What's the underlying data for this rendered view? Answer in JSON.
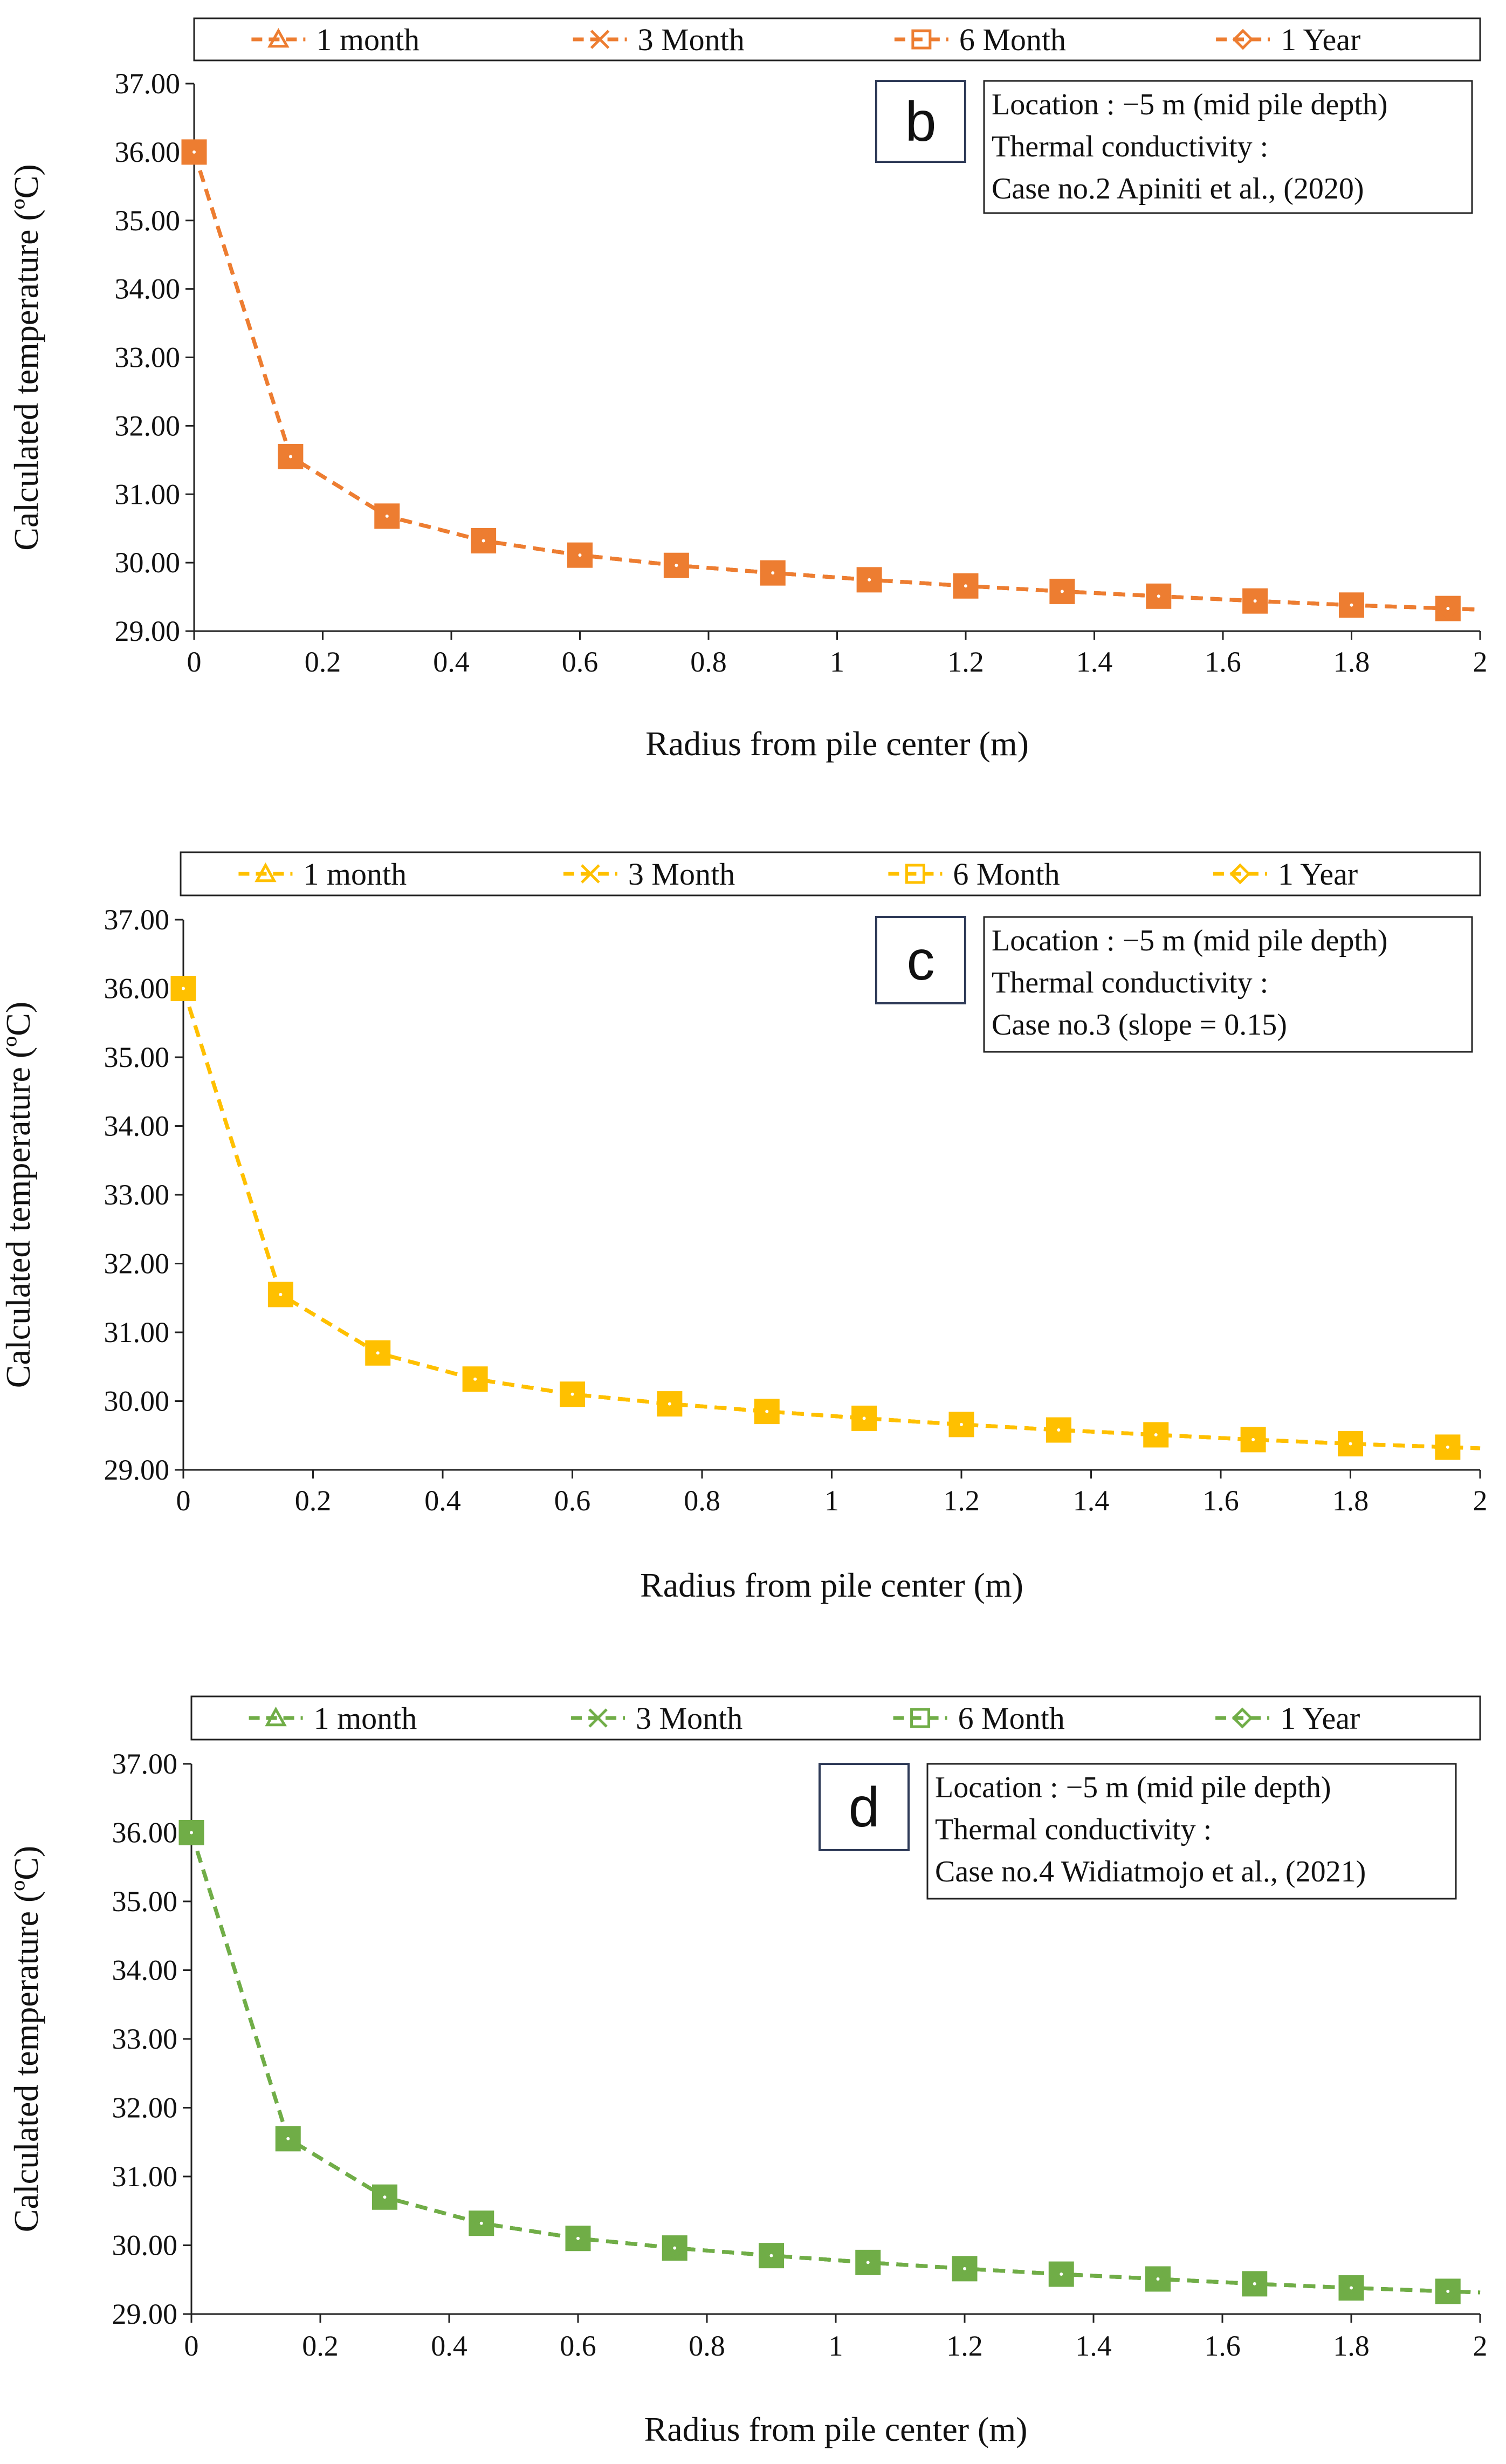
{
  "chart_data": [
    {
      "type": "line",
      "panel_label": "b",
      "color": "#ED7D31",
      "xlabel": "Radius from pile center (m)",
      "ylabel": "Calculated temperature (ºC)",
      "xlim": [
        0,
        2
      ],
      "ylim": [
        29,
        37
      ],
      "x_ticks": [
        "0",
        "0.2",
        "0.4",
        "0.6",
        "0.8",
        "1",
        "1.2",
        "1.4",
        "1.6",
        "1.8",
        "2"
      ],
      "y_ticks": [
        "29.00",
        "30.00",
        "31.00",
        "32.00",
        "33.00",
        "34.00",
        "35.00",
        "36.00",
        "37.00"
      ],
      "legend": [
        "1 month",
        "3 Month",
        "6 Month",
        "1 Year"
      ],
      "annotation": [
        "Location : −5 m (mid pile depth)",
        "Thermal conductivity :",
        "Case no.2 Apiniti et al., (2020)"
      ],
      "x": [
        0,
        0.15,
        0.3,
        0.45,
        0.6,
        0.75,
        0.9,
        1.05,
        1.2,
        1.35,
        1.5,
        1.65,
        1.8,
        1.95
      ],
      "series": [
        {
          "name": "1 month",
          "marker": "triangle",
          "values": [
            36.0,
            31.55,
            30.68,
            30.32,
            30.11,
            29.96,
            29.85,
            29.75,
            29.66,
            29.58,
            29.51,
            29.44,
            29.38,
            29.33
          ]
        },
        {
          "name": "3 Month",
          "marker": "x",
          "values": [
            36.0,
            31.55,
            30.68,
            30.32,
            30.11,
            29.96,
            29.85,
            29.75,
            29.66,
            29.58,
            29.51,
            29.44,
            29.38,
            29.33
          ]
        },
        {
          "name": "6 Month",
          "marker": "square",
          "values": [
            36.0,
            31.55,
            30.68,
            30.32,
            30.11,
            29.96,
            29.85,
            29.75,
            29.66,
            29.58,
            29.51,
            29.44,
            29.38,
            29.33
          ]
        },
        {
          "name": "1 Year",
          "marker": "diamond",
          "values": [
            36.0,
            31.55,
            30.68,
            30.32,
            30.11,
            29.96,
            29.85,
            29.75,
            29.66,
            29.58,
            29.51,
            29.44,
            29.38,
            29.33
          ]
        }
      ]
    },
    {
      "type": "line",
      "panel_label": "c",
      "color": "#FFC000",
      "xlabel": "Radius from pile center (m)",
      "ylabel": "Calculated temperature (ºC)",
      "xlim": [
        0,
        2
      ],
      "ylim": [
        29,
        37
      ],
      "x_ticks": [
        "0",
        "0.2",
        "0.4",
        "0.6",
        "0.8",
        "1",
        "1.2",
        "1.4",
        "1.6",
        "1.8",
        "2"
      ],
      "y_ticks": [
        "29.00",
        "30.00",
        "31.00",
        "32.00",
        "33.00",
        "34.00",
        "35.00",
        "36.00",
        "37.00"
      ],
      "legend": [
        "1 month",
        "3 Month",
        "6 Month",
        "1 Year"
      ],
      "annotation": [
        "Location : −5 m (mid pile depth)",
        "Thermal conductivity :",
        "Case no.3 (slope = 0.15)"
      ],
      "x": [
        0,
        0.15,
        0.3,
        0.45,
        0.6,
        0.75,
        0.9,
        1.05,
        1.2,
        1.35,
        1.5,
        1.65,
        1.8,
        1.95
      ],
      "series": [
        {
          "name": "1 month",
          "marker": "triangle",
          "values": [
            36.0,
            31.55,
            30.7,
            30.32,
            30.1,
            29.96,
            29.85,
            29.75,
            29.66,
            29.58,
            29.51,
            29.44,
            29.38,
            29.33
          ]
        },
        {
          "name": "3 Month",
          "marker": "x",
          "values": [
            36.0,
            31.55,
            30.7,
            30.32,
            30.1,
            29.96,
            29.85,
            29.75,
            29.66,
            29.58,
            29.51,
            29.44,
            29.38,
            29.33
          ]
        },
        {
          "name": "6 Month",
          "marker": "square",
          "values": [
            36.0,
            31.55,
            30.7,
            30.32,
            30.1,
            29.96,
            29.85,
            29.75,
            29.66,
            29.58,
            29.51,
            29.44,
            29.38,
            29.33
          ]
        },
        {
          "name": "1 Year",
          "marker": "diamond",
          "values": [
            36.0,
            31.55,
            30.7,
            30.32,
            30.1,
            29.96,
            29.85,
            29.75,
            29.66,
            29.58,
            29.51,
            29.44,
            29.38,
            29.33
          ]
        }
      ]
    },
    {
      "type": "line",
      "panel_label": "d",
      "color": "#70AD47",
      "xlabel": "Radius from pile center (m)",
      "ylabel": "Calculated temperature (ºC)",
      "xlim": [
        0,
        2
      ],
      "ylim": [
        29,
        37
      ],
      "x_ticks": [
        "0",
        "0.2",
        "0.4",
        "0.6",
        "0.8",
        "1",
        "1.2",
        "1.4",
        "1.6",
        "1.8",
        "2"
      ],
      "y_ticks": [
        "29.00",
        "30.00",
        "31.00",
        "32.00",
        "33.00",
        "34.00",
        "35.00",
        "36.00",
        "37.00"
      ],
      "legend": [
        "1 month",
        "3 Month",
        "6 Month",
        "1 Year"
      ],
      "annotation": [
        "Location : −5 m (mid pile depth)",
        "Thermal conductivity :",
        "Case no.4 Widiatmojo et al., (2021)"
      ],
      "x": [
        0,
        0.15,
        0.3,
        0.45,
        0.6,
        0.75,
        0.9,
        1.05,
        1.2,
        1.35,
        1.5,
        1.65,
        1.8,
        1.95
      ],
      "series": [
        {
          "name": "1 month",
          "marker": "triangle",
          "values": [
            36.0,
            31.55,
            30.7,
            30.32,
            30.1,
            29.96,
            29.85,
            29.75,
            29.66,
            29.58,
            29.51,
            29.44,
            29.38,
            29.33
          ]
        },
        {
          "name": "3 Month",
          "marker": "x",
          "values": [
            36.0,
            31.55,
            30.7,
            30.32,
            30.1,
            29.96,
            29.85,
            29.75,
            29.66,
            29.58,
            29.51,
            29.44,
            29.38,
            29.33
          ]
        },
        {
          "name": "6 Month",
          "marker": "square",
          "values": [
            36.0,
            31.55,
            30.7,
            30.32,
            30.1,
            29.96,
            29.85,
            29.75,
            29.66,
            29.58,
            29.51,
            29.44,
            29.38,
            29.33
          ]
        },
        {
          "name": "1 Year",
          "marker": "diamond",
          "values": [
            36.0,
            31.55,
            30.7,
            30.32,
            30.1,
            29.96,
            29.85,
            29.75,
            29.66,
            29.58,
            29.51,
            29.44,
            29.38,
            29.33
          ]
        }
      ]
    }
  ]
}
